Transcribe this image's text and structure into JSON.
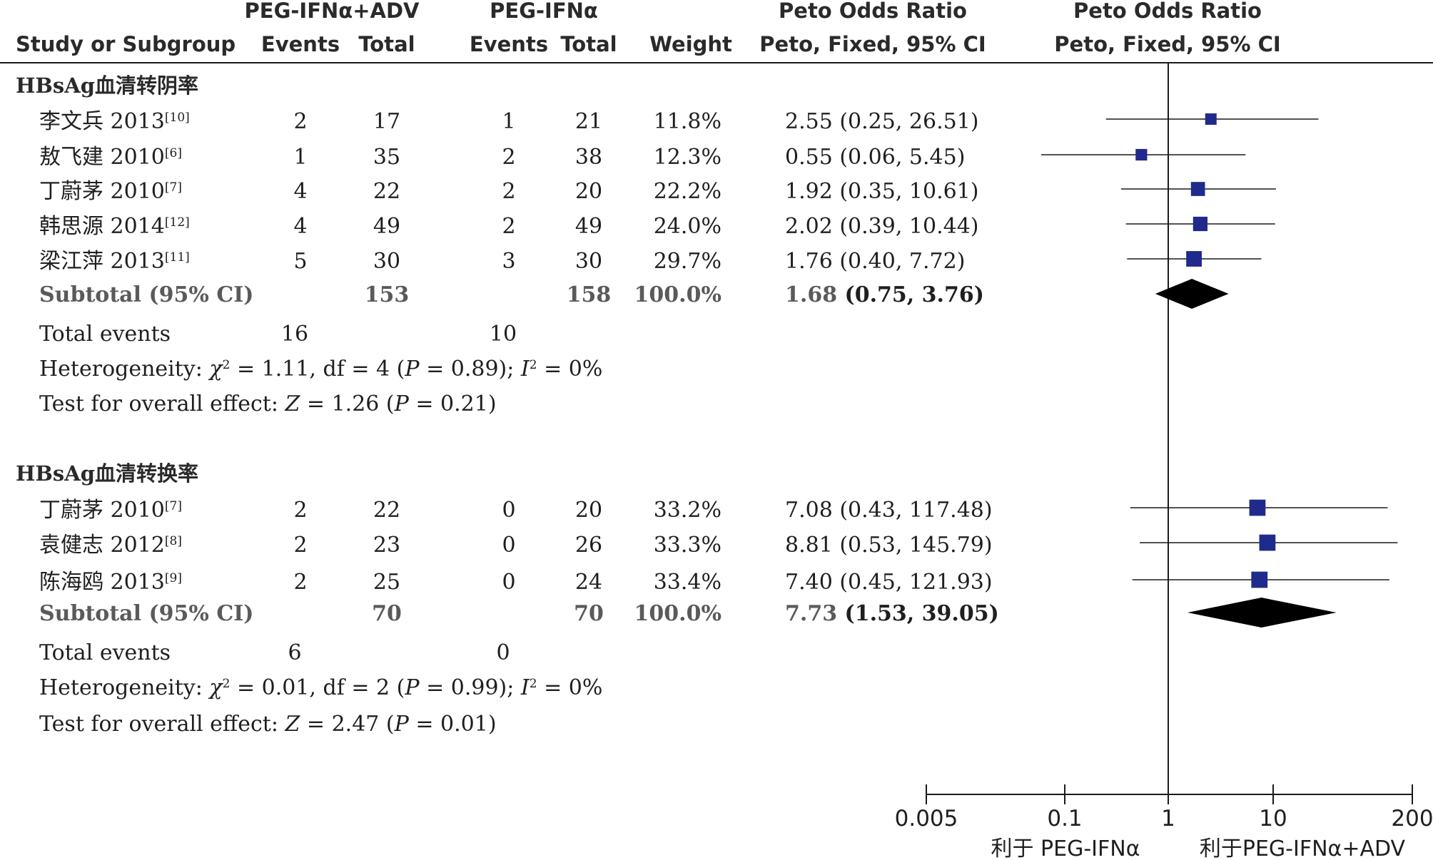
{
  "chart_data": {
    "type": "forest",
    "columns": {
      "study": "Study or Subgroup",
      "exp_group": "PEG-IFNα+ADV",
      "ctrl_group": "PEG-IFNα",
      "events": "Events",
      "total": "Total",
      "weight": "Weight",
      "effect_group": "Peto Odds Ratio",
      "effect_sub": "Peto, Fixed, 95% CI",
      "plot_group": "Peto Odds Ratio",
      "plot_sub": "Peto, Fixed, 95% CI"
    },
    "axis": {
      "scale": "log",
      "ticks": [
        0.005,
        0.1,
        1,
        10,
        200
      ],
      "tick_labels": [
        "0.005",
        "0.1",
        "1",
        "10",
        "200"
      ],
      "range": [
        0.005,
        200
      ],
      "favours_left": "利于 PEG-IFNα",
      "favours_right": "利于PEG-IFNα+ADV"
    },
    "colors": {
      "marker": "#1f2a8c",
      "diamond": "#000000",
      "line": "#1a1a1a"
    },
    "groups": [
      {
        "title": "HBsAg血清转阴率",
        "studies": [
          {
            "name": "李文兵 2013",
            "ref": "[10]",
            "exp_events": "2",
            "exp_total": "17",
            "ctrl_events": "1",
            "ctrl_total": "21",
            "weight": "11.8%",
            "ci_text": "2.55 (0.25, 26.51)",
            "or": 2.55,
            "lo": 0.25,
            "hi": 26.51,
            "w": 11.8
          },
          {
            "name": "敖飞建 2010",
            "ref": "[6]",
            "exp_events": "1",
            "exp_total": "35",
            "ctrl_events": "2",
            "ctrl_total": "38",
            "weight": "12.3%",
            "ci_text": "0.55 (0.06, 5.45)",
            "or": 0.55,
            "lo": 0.06,
            "hi": 5.45,
            "w": 12.3
          },
          {
            "name": "丁蔚茅 2010",
            "ref": "[7]",
            "exp_events": "4",
            "exp_total": "22",
            "ctrl_events": "2",
            "ctrl_total": "20",
            "weight": "22.2%",
            "ci_text": "1.92 (0.35, 10.61)",
            "or": 1.92,
            "lo": 0.35,
            "hi": 10.61,
            "w": 22.2
          },
          {
            "name": "韩思源 2014",
            "ref": "[12]",
            "exp_events": "4",
            "exp_total": "49",
            "ctrl_events": "2",
            "ctrl_total": "49",
            "weight": "24.0%",
            "ci_text": "2.02 (0.39, 10.44)",
            "or": 2.02,
            "lo": 0.39,
            "hi": 10.44,
            "w": 24.0
          },
          {
            "name": "梁江萍 2013",
            "ref": "[11]",
            "exp_events": "5",
            "exp_total": "30",
            "ctrl_events": "3",
            "ctrl_total": "30",
            "weight": "29.7%",
            "ci_text": "1.76 (0.40, 7.72)",
            "or": 1.76,
            "lo": 0.4,
            "hi": 7.72,
            "w": 29.7
          }
        ],
        "subtotal": {
          "label": "Subtotal (95% CI)",
          "exp_total": "153",
          "ctrl_total": "158",
          "weight": "100.0%",
          "ci_text": "1.68 (0.75, 3.76)",
          "or": 1.68,
          "lo": 0.75,
          "hi": 3.76
        },
        "total_events": {
          "label": "Total events",
          "exp": "16",
          "ctrl": "10"
        },
        "heterogeneity": {
          "label": "Heterogeneity:",
          "chi2": "1.11",
          "df": "4",
          "p": "0.89",
          "i2": "0%"
        },
        "overall": {
          "label": "Test for overall effect:",
          "z": "1.26",
          "p": "0.21"
        }
      },
      {
        "title": "HBsAg血清转换率",
        "studies": [
          {
            "name": "丁蔚茅 2010",
            "ref": "[7]",
            "exp_events": "2",
            "exp_total": "22",
            "ctrl_events": "0",
            "ctrl_total": "20",
            "weight": "33.2%",
            "ci_text": "7.08 (0.43, 117.48)",
            "or": 7.08,
            "lo": 0.43,
            "hi": 117.48,
            "w": 33.2
          },
          {
            "name": "袁健志 2012",
            "ref": "[8]",
            "exp_events": "2",
            "exp_total": "23",
            "ctrl_events": "0",
            "ctrl_total": "26",
            "weight": "33.3%",
            "ci_text": "8.81 (0.53, 145.79)",
            "or": 8.81,
            "lo": 0.53,
            "hi": 145.79,
            "w": 33.3
          },
          {
            "name": "陈海鸥 2013",
            "ref": "[9]",
            "exp_events": "2",
            "exp_total": "25",
            "ctrl_events": "0",
            "ctrl_total": "24",
            "weight": "33.4%",
            "ci_text": "7.40 (0.45, 121.93)",
            "or": 7.4,
            "lo": 0.45,
            "hi": 121.93,
            "w": 33.4
          }
        ],
        "subtotal": {
          "label": "Subtotal (95% CI)",
          "exp_total": "70",
          "ctrl_total": "70",
          "weight": "100.0%",
          "ci_text": "7.73 (1.53, 39.05)",
          "or": 7.73,
          "lo": 1.53,
          "hi": 39.05
        },
        "total_events": {
          "label": "Total events",
          "exp": "6",
          "ctrl": "0"
        },
        "heterogeneity": {
          "label": "Heterogeneity:",
          "chi2": "0.01",
          "df": "2",
          "p": "0.99",
          "i2": "0%"
        },
        "overall": {
          "label": "Test for overall effect:",
          "z": "2.47",
          "p": "0.01"
        }
      }
    ]
  }
}
